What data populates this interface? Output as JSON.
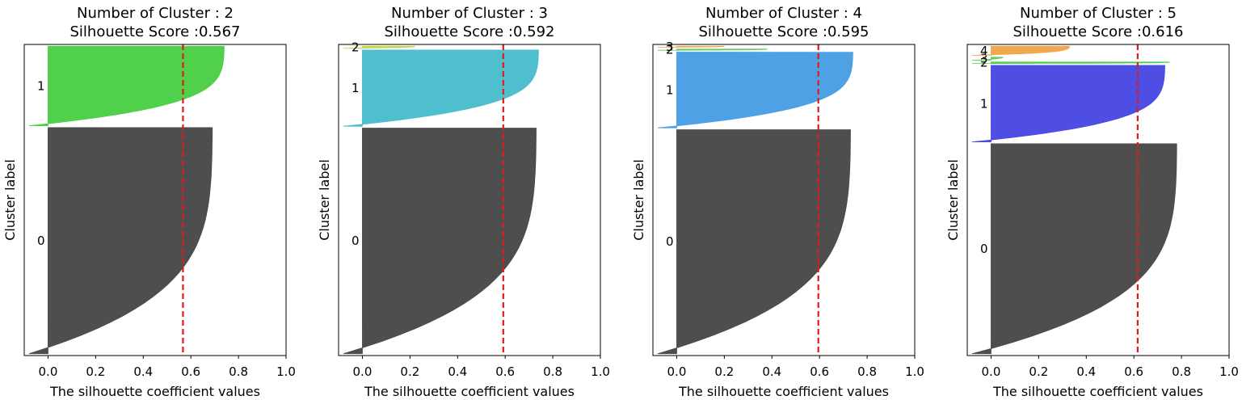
{
  "chart_data": [
    {
      "type": "silhouette",
      "title": "Number of Cluster : 2",
      "subtitle": "Silhouette Score :0.567",
      "xlabel": "The silhouette coefficient values",
      "ylabel": "Cluster label",
      "xlim": [
        -0.1,
        1.0
      ],
      "xticks": [
        0.0,
        0.2,
        0.4,
        0.6,
        0.8,
        1.0
      ],
      "xtick_labels": [
        "0.0",
        "0.2",
        "0.4",
        "0.6",
        "0.8",
        "1.0"
      ],
      "score": 0.567,
      "clusters": [
        {
          "label": "0",
          "size": 0.74,
          "max": 0.69,
          "color": "#4a4a4a"
        },
        {
          "label": "1",
          "size": 0.26,
          "max": 0.74,
          "color": "#4ccf47"
        }
      ]
    },
    {
      "type": "silhouette",
      "title": "Number of Cluster : 3",
      "subtitle": "Silhouette Score :0.592",
      "xlabel": "The silhouette coefficient values",
      "ylabel": "Cluster label",
      "xlim": [
        -0.1,
        1.0
      ],
      "xticks": [
        0.0,
        0.2,
        0.4,
        0.6,
        0.8,
        1.0
      ],
      "xtick_labels": [
        "0.0",
        "0.2",
        "0.4",
        "0.6",
        "0.8",
        "1.0"
      ],
      "score": 0.592,
      "clusters": [
        {
          "label": "0",
          "size": 0.74,
          "max": 0.73,
          "color": "#4a4a4a"
        },
        {
          "label": "1",
          "size": 0.25,
          "max": 0.74,
          "color": "#4bbdcc"
        },
        {
          "label": "2",
          "size": 0.006,
          "max": 0.22,
          "color": "#c4d43c"
        }
      ]
    },
    {
      "type": "silhouette",
      "title": "Number of Cluster : 4",
      "subtitle": "Silhouette Score :0.595",
      "xlabel": "The silhouette coefficient values",
      "ylabel": "Cluster label",
      "xlim": [
        -0.1,
        1.0
      ],
      "xticks": [
        0.0,
        0.2,
        0.4,
        0.6,
        0.8,
        1.0
      ],
      "xtick_labels": [
        "0.0",
        "0.2",
        "0.4",
        "0.6",
        "0.8",
        "1.0"
      ],
      "score": 0.595,
      "clusters": [
        {
          "label": "0",
          "size": 0.74,
          "max": 0.73,
          "color": "#4a4a4a"
        },
        {
          "label": "1",
          "size": 0.25,
          "max": 0.74,
          "color": "#4a9fe4"
        },
        {
          "label": "2",
          "size": 0.004,
          "max": 0.38,
          "color": "#5fcf5f"
        },
        {
          "label": "3",
          "size": 0.003,
          "max": 0.2,
          "color": "#f2a64a"
        }
      ]
    },
    {
      "type": "silhouette",
      "title": "Number of Cluster : 5",
      "subtitle": "Silhouette Score :0.616",
      "xlabel": "The silhouette coefficient values",
      "ylabel": "Cluster label",
      "xlim": [
        -0.1,
        1.0
      ],
      "xticks": [
        0.0,
        0.2,
        0.4,
        0.6,
        0.8,
        1.0
      ],
      "xtick_labels": [
        "0.0",
        "0.2",
        "0.4",
        "0.6",
        "0.8",
        "1.0"
      ],
      "score": 0.616,
      "clusters": [
        {
          "label": "0",
          "size": 0.7,
          "max": 0.78,
          "color": "#4a4a4a"
        },
        {
          "label": "1",
          "size": 0.255,
          "max": 0.73,
          "color": "#4a4ae4"
        },
        {
          "label": "2",
          "size": 0.005,
          "max": 0.75,
          "color": "#4ccf47"
        },
        {
          "label": "3",
          "size": 0.01,
          "max": 0.05,
          "color": "#5fcf5f"
        },
        {
          "label": "4",
          "size": 0.03,
          "max": 0.33,
          "color": "#f2a64a"
        }
      ]
    }
  ]
}
